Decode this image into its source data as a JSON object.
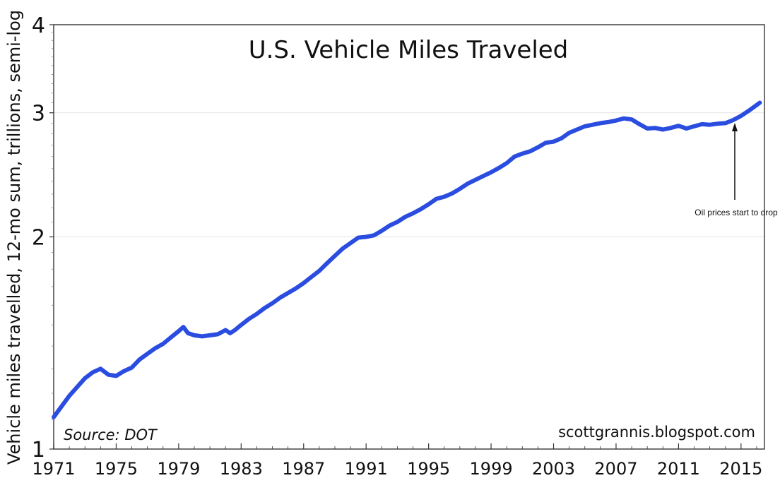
{
  "chart_data": {
    "type": "line",
    "title": "U.S. Vehicle Miles Traveled",
    "xlabel": "",
    "ylabel": "Vehicle miles travelled, 12-mo sum, trillions, semi-log",
    "y_scale": "log",
    "ylim": [
      1,
      4
    ],
    "yticks": [
      1,
      2,
      3,
      4
    ],
    "xlim": [
      1971,
      2016.5
    ],
    "xticks": [
      "1971",
      "1975",
      "1979",
      "1983",
      "1987",
      "1991",
      "1995",
      "1999",
      "2003",
      "2007",
      "2011",
      "2015"
    ],
    "grid": "horizontal",
    "legend": "none",
    "line_color": "#2a4de0",
    "series": [
      {
        "x": [
          1971.0,
          1972.0,
          1973.0,
          1973.5,
          1974.0,
          1974.5,
          1975.0,
          1975.5,
          1976.0,
          1976.5,
          1977.0,
          1977.5,
          1978.0,
          1978.5,
          1979.0,
          1979.3,
          1979.6,
          1980.0,
          1980.5,
          1981.0,
          1981.5,
          1982.0,
          1982.3,
          1982.6,
          1983.0,
          1983.5,
          1984.0,
          1984.5,
          1985.0,
          1985.5,
          1986.0,
          1986.5,
          1987.0,
          1987.5,
          1988.0,
          1988.5,
          1989.0,
          1989.5,
          1990.0,
          1990.5,
          1991.0,
          1991.5,
          1992.0,
          1992.5,
          1993.0,
          1993.5,
          1994.0,
          1994.5,
          1995.0,
          1995.5,
          1996.0,
          1996.5,
          1997.0,
          1997.5,
          1998.0,
          1998.5,
          1999.0,
          1999.5,
          2000.0,
          2000.5,
          2001.0,
          2001.5,
          2002.0,
          2002.5,
          2003.0,
          2003.5,
          2004.0,
          2004.5,
          2005.0,
          2005.5,
          2006.0,
          2006.5,
          2007.0,
          2007.5,
          2008.0,
          2008.5,
          2009.0,
          2009.5,
          2010.0,
          2010.5,
          2011.0,
          2011.5,
          2012.0,
          2012.5,
          2013.0,
          2013.5,
          2014.0,
          2014.5,
          2015.0,
          2015.5,
          2016.2
        ],
        "values": [
          1.11,
          1.19,
          1.26,
          1.285,
          1.3,
          1.275,
          1.27,
          1.29,
          1.305,
          1.34,
          1.365,
          1.39,
          1.41,
          1.44,
          1.47,
          1.49,
          1.46,
          1.45,
          1.445,
          1.45,
          1.455,
          1.475,
          1.46,
          1.475,
          1.5,
          1.53,
          1.555,
          1.585,
          1.61,
          1.64,
          1.665,
          1.69,
          1.72,
          1.755,
          1.79,
          1.835,
          1.88,
          1.925,
          1.96,
          1.995,
          2.0,
          2.01,
          2.04,
          2.075,
          2.1,
          2.135,
          2.16,
          2.19,
          2.225,
          2.265,
          2.28,
          2.305,
          2.34,
          2.38,
          2.41,
          2.44,
          2.47,
          2.505,
          2.545,
          2.6,
          2.625,
          2.645,
          2.68,
          2.72,
          2.73,
          2.76,
          2.81,
          2.84,
          2.87,
          2.885,
          2.9,
          2.91,
          2.925,
          2.945,
          2.935,
          2.89,
          2.85,
          2.855,
          2.84,
          2.855,
          2.875,
          2.85,
          2.87,
          2.89,
          2.885,
          2.895,
          2.9,
          2.93,
          2.97,
          3.02,
          3.1
        ]
      }
    ],
    "annotations": {
      "source": "Source: DOT",
      "credit": "scottgrannis.blogspot.com",
      "arrow_note": "Oil prices start to drop",
      "arrow_note_x": 2014.6
    }
  }
}
